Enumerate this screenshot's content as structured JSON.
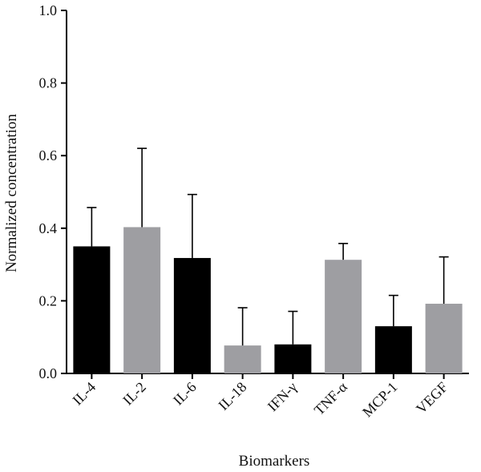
{
  "chart_data": {
    "type": "bar",
    "categories": [
      "IL-4",
      "IL-2",
      "IL-6",
      "IL-18",
      "IFN-γ",
      "TNF-α",
      "MCP-1",
      "VEGF"
    ],
    "values": [
      0.35,
      0.403,
      0.318,
      0.077,
      0.08,
      0.313,
      0.13,
      0.192
    ],
    "error_upper": [
      0.457,
      0.62,
      0.493,
      0.181,
      0.171,
      0.358,
      0.215,
      0.321
    ],
    "bar_colors": [
      "#000000",
      "#9e9ea2",
      "#000000",
      "#9e9ea2",
      "#000000",
      "#9e9ea2",
      "#000000",
      "#9e9ea2"
    ],
    "xlabel": "Biomarkers",
    "ylabel": "Normalized concentration",
    "ylim": [
      0.0,
      1.0
    ],
    "yticks": [
      "0.0",
      "0.2",
      "0.4",
      "0.6",
      "0.8",
      "1.0"
    ],
    "grid": false
  }
}
